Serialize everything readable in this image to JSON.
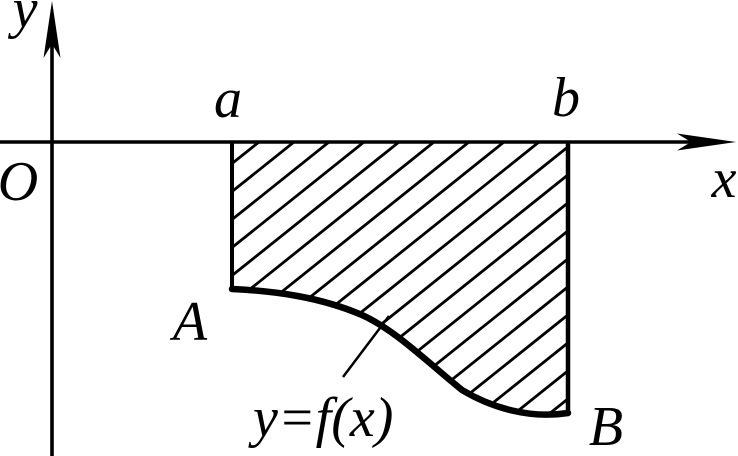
{
  "figure": {
    "labels": {
      "y_axis": "y",
      "x_axis": "x",
      "origin": "O",
      "limit_a": "a",
      "limit_b": "b",
      "point_A": "A",
      "point_B": "B",
      "curve_equation": "y=f(x)"
    },
    "colors": {
      "ink": "#000000",
      "background": "#ffffff"
    }
  }
}
